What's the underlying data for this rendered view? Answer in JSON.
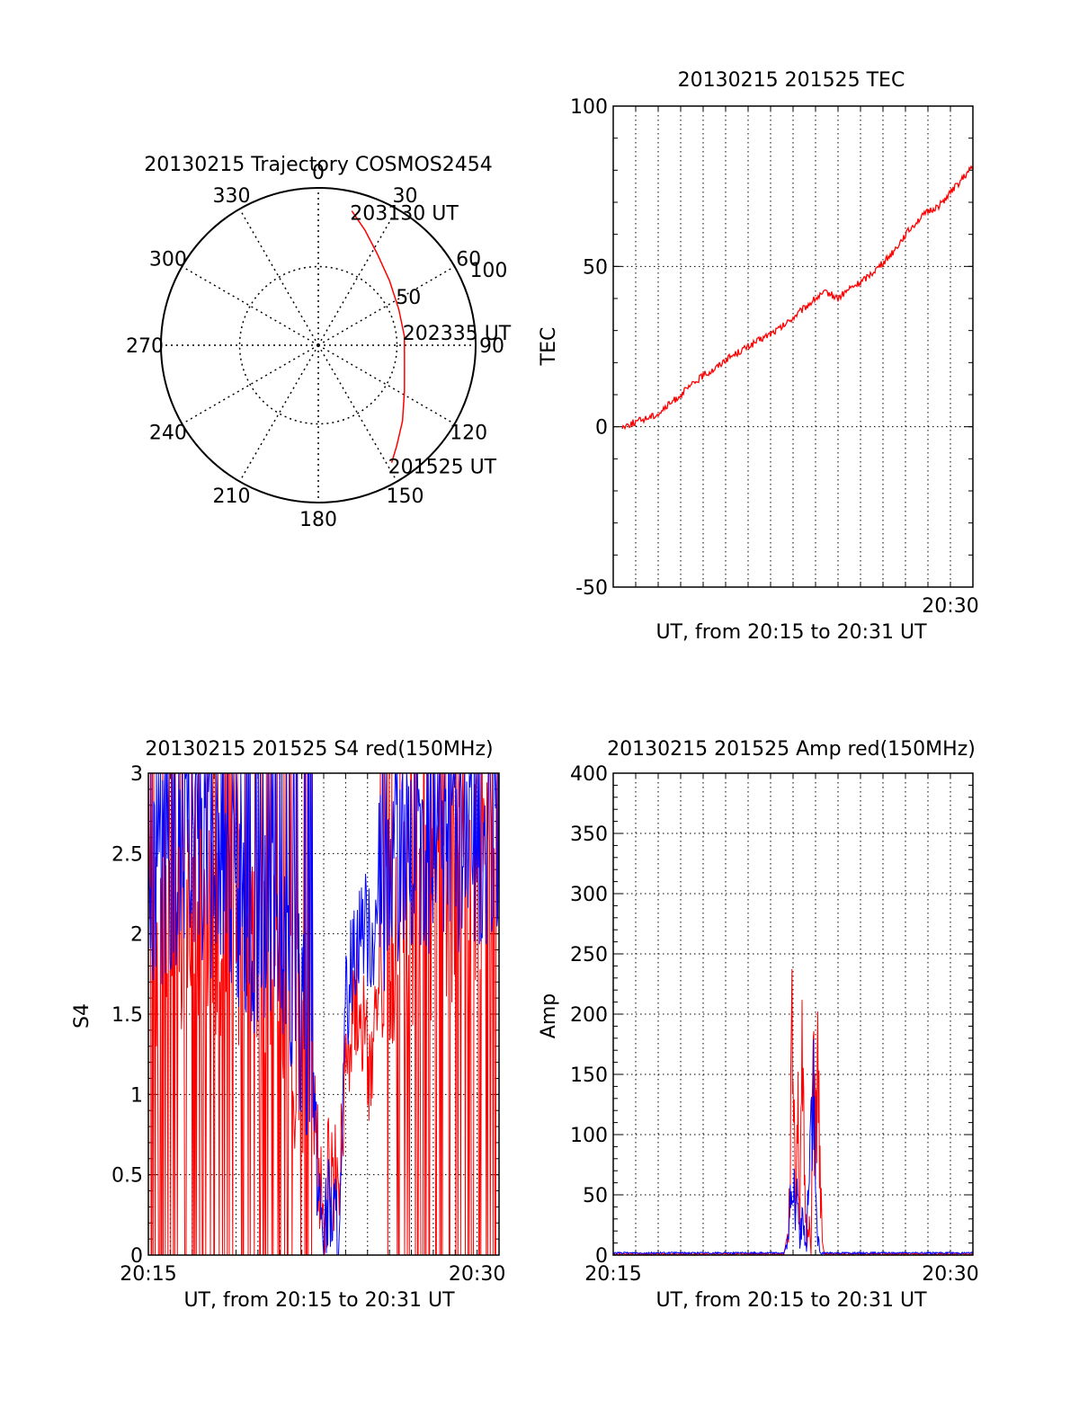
{
  "colors": {
    "red": "#ff0000",
    "blue": "#0000ff",
    "axis": "#000000"
  },
  "chart_data": [
    {
      "type": "polar",
      "title": "20130215 Trajectory COSMOS2454",
      "angle_labels": [
        "0",
        "30",
        "60",
        "90",
        "120",
        "150",
        "180",
        "210",
        "240",
        "270",
        "300",
        "330"
      ],
      "radial_ticks": [
        "50",
        "100"
      ],
      "radial_range": [
        0,
        100
      ],
      "trajectory": {
        "color": "red",
        "points": [
          {
            "az": 14,
            "r": 88
          },
          {
            "az": 22,
            "r": 79
          },
          {
            "az": 33,
            "r": 69
          },
          {
            "az": 48,
            "r": 61
          },
          {
            "az": 66,
            "r": 56
          },
          {
            "az": 84,
            "r": 55
          },
          {
            "az": 102,
            "r": 56
          },
          {
            "az": 118,
            "r": 62
          },
          {
            "az": 132,
            "r": 72
          },
          {
            "az": 142,
            "r": 81
          },
          {
            "az": 148,
            "r": 88
          }
        ]
      },
      "annotations": [
        {
          "text": "203130 UT"
        },
        {
          "text": "202335 UT"
        },
        {
          "text": "201525 UT"
        }
      ]
    },
    {
      "type": "line",
      "title": "20130215 201525 TEC",
      "xlabel": "UT, from 20:15 to 20:31 UT",
      "ylabel": "TEC",
      "xlim": [
        0,
        16
      ],
      "ylim": [
        -50,
        100
      ],
      "yticks": [
        "100",
        "50",
        "0",
        "-50"
      ],
      "xtick_labels": [
        {
          "x": 15,
          "label": "20:30"
        }
      ],
      "grid": true,
      "series": [
        {
          "color": "red",
          "x": [
            0.4,
            0.8,
            1.2,
            1.6,
            2.0,
            2.5,
            3.0,
            3.5,
            4.0,
            4.5,
            5.0,
            5.5,
            6.0,
            6.5,
            7.0,
            7.5,
            8.0,
            8.5,
            9.0,
            9.5,
            10.0,
            10.5,
            11.0,
            11.5,
            12.0,
            12.5,
            13.0,
            13.5,
            14.0,
            14.5,
            15.0,
            15.5,
            16.0
          ],
          "y": [
            0,
            1,
            2,
            3,
            4,
            7,
            10,
            13,
            16,
            18,
            21,
            23,
            25,
            27,
            29,
            31,
            34,
            37,
            40,
            42,
            40,
            43,
            45,
            48,
            51,
            55,
            60,
            64,
            67,
            69,
            73,
            77,
            81
          ]
        }
      ]
    },
    {
      "type": "line",
      "title": "20130215 201525 S4 red(150MHz)",
      "xlabel": "UT, from 20:15 to 20:31 UT",
      "ylabel": "S4",
      "xlim": [
        0,
        16
      ],
      "ylim": [
        0,
        3
      ],
      "yticks": [
        "3",
        "2.5",
        "2",
        "1.5",
        "1",
        "0.5",
        "0"
      ],
      "xtick_labels": [
        {
          "x": 0,
          "label": "20:15"
        },
        {
          "x": 15,
          "label": "20:30"
        }
      ],
      "grid": true,
      "series": [
        {
          "color": "red",
          "x": [
            0,
            0.5,
            1,
            1.5,
            2,
            2.5,
            3,
            3.5,
            4,
            4.5,
            5,
            5.5,
            6,
            6.5,
            7,
            7.25,
            7.5,
            7.75,
            8,
            8.25,
            8.5,
            8.75,
            9,
            9.25,
            9.5,
            9.75,
            10,
            10.25,
            10.5,
            11,
            11.5,
            12,
            12.5,
            13,
            13.5,
            14,
            14.5,
            15,
            15.5,
            16
          ],
          "y": [
            2.0,
            1.8,
            1.9,
            2.0,
            2.1,
            2.0,
            1.9,
            1.9,
            2.0,
            1.9,
            1.8,
            1.8,
            1.6,
            1.4,
            1.2,
            1.0,
            0.9,
            0.5,
            0.2,
            0.5,
            0.4,
            0.6,
            1.2,
            1.5,
            1.6,
            1.5,
            1.2,
            1.3,
            1.5,
            1.8,
            2.0,
            2.1,
            2.2,
            2.1,
            2.3,
            2.2,
            2.3,
            2.4,
            2.3,
            2.5
          ]
        },
        {
          "color": "blue",
          "x": [
            0,
            0.5,
            1,
            1.5,
            2,
            2.5,
            3,
            3.5,
            4,
            4.5,
            5,
            5.5,
            6,
            6.5,
            7,
            7.25,
            7.5,
            7.75,
            8,
            8.25,
            8.5,
            8.75,
            9,
            9.25,
            9.5,
            9.75,
            10,
            10.25,
            10.5,
            11,
            11.5,
            12,
            12.5,
            13,
            13.5,
            14,
            14.5,
            15,
            15.5,
            16
          ],
          "y": [
            2.2,
            2.3,
            2.4,
            2.5,
            2.6,
            2.4,
            2.3,
            2.3,
            2.2,
            2.0,
            2.0,
            2.0,
            1.8,
            1.6,
            1.5,
            1.3,
            1.2,
            0.4,
            0.15,
            0.3,
            0.2,
            0.1,
            1.5,
            1.8,
            2.0,
            2.1,
            2.0,
            2.0,
            2.2,
            2.3,
            2.4,
            2.4,
            2.5,
            2.4,
            2.6,
            2.5,
            2.6,
            2.6,
            2.5,
            2.7
          ]
        }
      ]
    },
    {
      "type": "line",
      "title": "20130215 201525 Amp red(150MHz)",
      "xlabel": "UT, from 20:15 to 20:31 UT",
      "ylabel": "Amp",
      "xlim": [
        0,
        16
      ],
      "ylim": [
        0,
        400
      ],
      "yticks": [
        "400",
        "350",
        "300",
        "250",
        "200",
        "150",
        "100",
        "50",
        "0"
      ],
      "xtick_labels": [
        {
          "x": 0,
          "label": "20:15"
        },
        {
          "x": 15,
          "label": "20:30"
        }
      ],
      "grid": true,
      "series": [
        {
          "color": "red",
          "x": [
            0,
            7.6,
            7.8,
            7.9,
            8.0,
            8.1,
            8.2,
            8.3,
            8.4,
            8.5,
            8.6,
            8.7,
            8.8,
            8.9,
            9.0,
            9.1,
            9.2,
            9.3,
            9.4,
            9.5,
            16
          ],
          "y": [
            0,
            0,
            25,
            140,
            245,
            60,
            190,
            30,
            170,
            90,
            10,
            40,
            0,
            220,
            140,
            175,
            80,
            10,
            0,
            0,
            0
          ]
        },
        {
          "color": "blue",
          "x": [
            0,
            7.6,
            7.8,
            7.9,
            8.0,
            8.1,
            8.2,
            8.3,
            8.4,
            8.5,
            8.6,
            8.7,
            8.8,
            8.9,
            9.0,
            9.1,
            9.2,
            9.3,
            16
          ],
          "y": [
            1,
            1,
            15,
            70,
            90,
            30,
            60,
            10,
            40,
            20,
            5,
            100,
            140,
            160,
            60,
            20,
            2,
            1,
            1
          ]
        }
      ]
    }
  ]
}
